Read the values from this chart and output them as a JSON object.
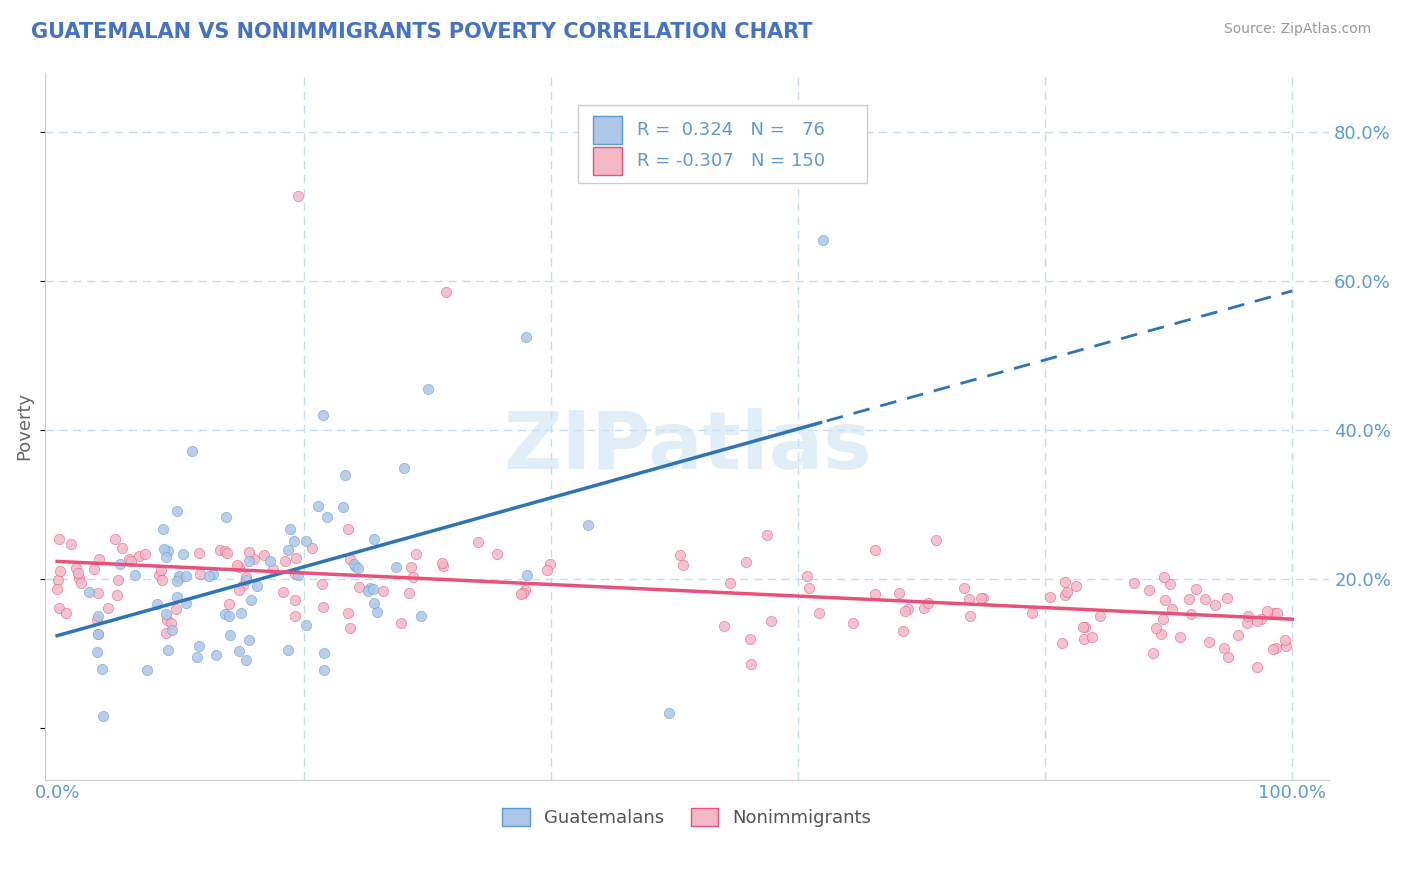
{
  "title": "GUATEMALAN VS NONIMMIGRANTS POVERTY CORRELATION CHART",
  "source": "Source: ZipAtlas.com",
  "ylabel": "Poverty",
  "guatemalan_color": "#aec6e8",
  "guatemalan_edge_color": "#5b9bd5",
  "nonimmigrant_color": "#f4b8c8",
  "nonimmigrant_edge_color": "#e8527a",
  "guatemalan_line_color": "#2e75b6",
  "nonimmigrant_line_color": "#e8527a",
  "title_color": "#4472c4",
  "axis_color": "#5b9bd5",
  "grid_color": "#c5ddf0",
  "background_color": "#ffffff",
  "watermark": "ZIPatlas",
  "watermark_zip_color": "#cde0f0",
  "watermark_atlas_color": "#d8eaf5"
}
